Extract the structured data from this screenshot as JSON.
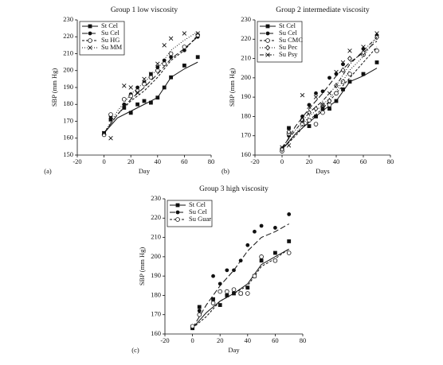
{
  "chart_data": [
    {
      "type": "scatter",
      "title": "Group 1 low viscosity",
      "panel": "(a)",
      "xlabel": "Day",
      "ylabel": "SBP (mm Hg)",
      "xlim": [
        -20,
        80
      ],
      "ylim": [
        150,
        230
      ],
      "xticks": [
        -20,
        0,
        20,
        40,
        60,
        80
      ],
      "yticks": [
        150,
        160,
        170,
        180,
        190,
        200,
        210,
        220,
        230
      ],
      "x": [
        0,
        5,
        15,
        20,
        25,
        30,
        35,
        40,
        45,
        50,
        60,
        70
      ],
      "line_x": [
        0,
        10,
        20,
        30,
        40,
        50,
        60,
        70
      ],
      "series": [
        {
          "name": "St Cel",
          "color": "#111111",
          "marker": "square",
          "dash": "solid",
          "values": [
            163,
            171,
            178,
            175,
            180,
            182,
            181,
            184,
            190,
            196,
            203,
            208
          ],
          "line_values": [
            163,
            172,
            176,
            180,
            184,
            196,
            201,
            205
          ]
        },
        {
          "name": "Su Cel",
          "color": "#111111",
          "marker": "circle",
          "dash": "long",
          "values": [
            163,
            173,
            180,
            186,
            190,
            193,
            198,
            202,
            206,
            208,
            212,
            220
          ],
          "line_values": [
            163,
            174,
            183,
            190,
            198,
            207,
            213,
            220
          ]
        },
        {
          "name": "Su HG",
          "color": "#111111",
          "marker": "open-circle",
          "dash": "short",
          "values": [
            162,
            174,
            183,
            185,
            188,
            192,
            196,
            200,
            204,
            210,
            214,
            221
          ],
          "line_values": [
            163,
            174,
            182,
            188,
            196,
            206,
            212,
            221
          ]
        },
        {
          "name": "Su MM",
          "color": "#111111",
          "marker": "x",
          "dash": "dot",
          "values": [
            163,
            160,
            191,
            190,
            187,
            195,
            198,
            204,
            215,
            219,
            222,
            222
          ],
          "line_values": [
            163,
            176,
            186,
            193,
            201,
            212,
            218,
            223
          ]
        }
      ]
    },
    {
      "type": "scatter",
      "title": "Group 2 intermediate viscosity",
      "panel": "(b)",
      "xlabel": "Days",
      "ylabel": "SBP (mm Hg)",
      "xlim": [
        -20,
        80
      ],
      "ylim": [
        160,
        230
      ],
      "xticks": [
        -20,
        0,
        20,
        40,
        60,
        80
      ],
      "yticks": [
        160,
        170,
        180,
        190,
        200,
        210,
        220,
        230
      ],
      "x": [
        0,
        5,
        15,
        20,
        25,
        30,
        35,
        40,
        45,
        50,
        60,
        70
      ],
      "line_x": [
        0,
        10,
        20,
        30,
        40,
        50,
        60,
        70
      ],
      "series": [
        {
          "name": "St Cel",
          "color": "#111111",
          "marker": "square",
          "dash": "solid",
          "values": [
            163,
            174,
            178,
            175,
            180,
            184,
            184,
            188,
            194,
            198,
            202,
            208
          ],
          "line_values": [
            163,
            171,
            177,
            183,
            188,
            198,
            201,
            205
          ]
        },
        {
          "name": "Su Cel",
          "color": "#111111",
          "marker": "circle",
          "dash": "long",
          "values": [
            162,
            170,
            180,
            186,
            192,
            193,
            200,
            202,
            207,
            210,
            215,
            222
          ],
          "line_values": [
            163,
            175,
            184,
            192,
            201,
            208,
            213,
            219
          ]
        },
        {
          "name": "Su CMC",
          "color": "#111111",
          "marker": "open-circle",
          "dash": "short",
          "values": [
            162,
            171,
            176,
            178,
            176,
            182,
            186,
            192,
            198,
            202,
            212,
            214
          ],
          "line_values": [
            163,
            170,
            178,
            184,
            192,
            200,
            208,
            216
          ]
        },
        {
          "name": "Su Pec",
          "color": "#111111",
          "marker": "diamond",
          "dash": "dot",
          "values": [
            163,
            172,
            178,
            182,
            184,
            186,
            188,
            196,
            204,
            210,
            213,
            221
          ],
          "line_values": [
            163,
            171,
            180,
            186,
            193,
            204,
            211,
            221
          ]
        },
        {
          "name": "Su Psy",
          "color": "#111111",
          "marker": "x",
          "dash": "dashdot",
          "values": [
            164,
            165,
            191,
            185,
            190,
            186,
            192,
            203,
            208,
            214,
            216,
            223
          ],
          "line_values": [
            164,
            173,
            182,
            188,
            196,
            207,
            214,
            221
          ]
        }
      ]
    },
    {
      "type": "scatter",
      "title": "Group 3 high viscosity",
      "panel": "(c)",
      "xlabel": "Day",
      "ylabel": "SBP (mm Hg)",
      "xlim": [
        -20,
        80
      ],
      "ylim": [
        160,
        230
      ],
      "xticks": [
        -20,
        0,
        20,
        40,
        60,
        80
      ],
      "yticks": [
        160,
        170,
        180,
        190,
        200,
        210,
        220,
        230
      ],
      "x": [
        0,
        5,
        15,
        20,
        25,
        30,
        35,
        40,
        45,
        50,
        60,
        70
      ],
      "line_x": [
        0,
        10,
        20,
        30,
        40,
        50,
        60,
        70
      ],
      "series": [
        {
          "name": "St Cel",
          "color": "#111111",
          "marker": "square",
          "dash": "solid",
          "values": [
            163,
            174,
            178,
            175,
            180,
            181,
            181,
            184,
            190,
            198,
            202,
            208
          ],
          "line_values": [
            163,
            171,
            177,
            181,
            186,
            196,
            200,
            204
          ]
        },
        {
          "name": "Su Cel",
          "color": "#111111",
          "marker": "circle",
          "dash": "long",
          "values": [
            163,
            172,
            190,
            186,
            193,
            193,
            198,
            206,
            213,
            216,
            215,
            222
          ],
          "line_values": [
            163,
            175,
            185,
            193,
            203,
            210,
            213,
            217
          ]
        },
        {
          "name": "Su Guar",
          "color": "#111111",
          "marker": "open-circle",
          "dash": "short",
          "values": [
            164,
            170,
            176,
            182,
            182,
            183,
            181,
            181,
            190,
            200,
            198,
            202
          ],
          "line_values": [
            163,
            169,
            177,
            181,
            185,
            195,
            199,
            204
          ]
        }
      ]
    }
  ]
}
